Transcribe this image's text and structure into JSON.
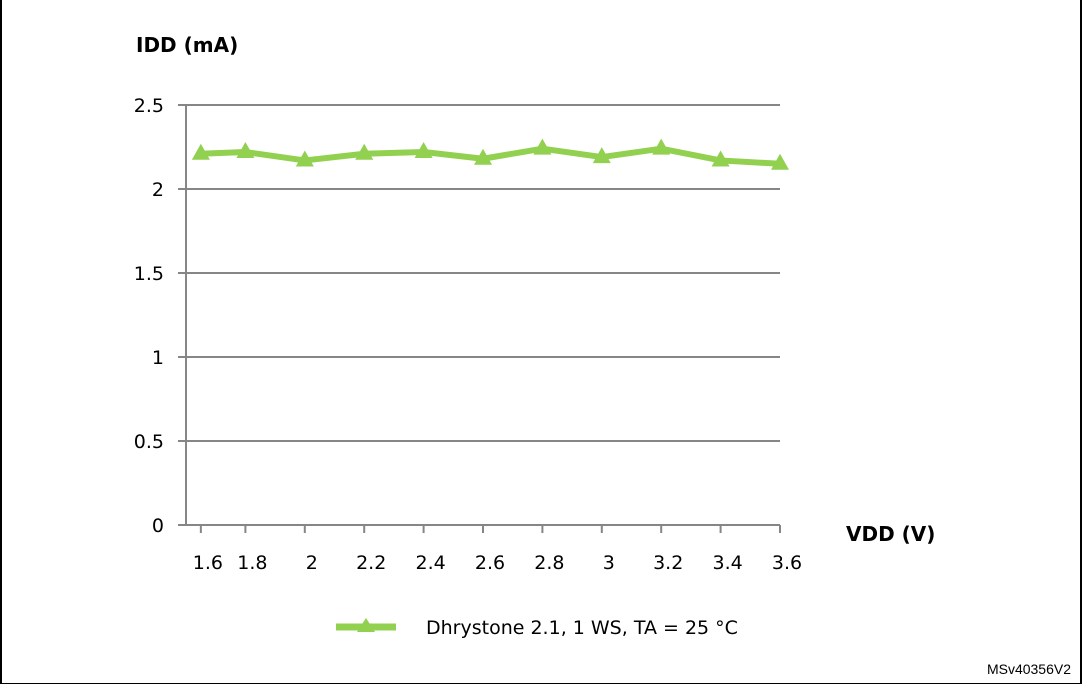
{
  "chart_data": {
    "type": "line",
    "title": "",
    "ylabel": "IDD (mA)",
    "xlabel": "VDD (V)",
    "x": [
      1.65,
      1.8,
      2.0,
      2.2,
      2.4,
      2.6,
      2.8,
      3.0,
      3.2,
      3.4,
      3.6
    ],
    "xticks": [
      "1.6",
      "1.8",
      "2",
      "2.2",
      "2.4",
      "2.6",
      "2.8",
      "3",
      "3.2",
      "3.4",
      "3.6"
    ],
    "yticks": [
      "0",
      "0.5",
      "1",
      "1.5",
      "2",
      "2.5"
    ],
    "ylim": [
      0,
      2.5
    ],
    "xlim": [
      1.6,
      3.6
    ],
    "grid": true,
    "legend_position": "bottom-center",
    "series": [
      {
        "name": "Dhrystone 2.1, 1 WS, TA = 25 °C",
        "color": "#92d050",
        "marker": "triangle",
        "values": [
          2.21,
          2.22,
          2.17,
          2.21,
          2.22,
          2.18,
          2.24,
          2.19,
          2.24,
          2.17,
          2.15
        ]
      }
    ]
  },
  "figure_id": "MSv40356V2"
}
